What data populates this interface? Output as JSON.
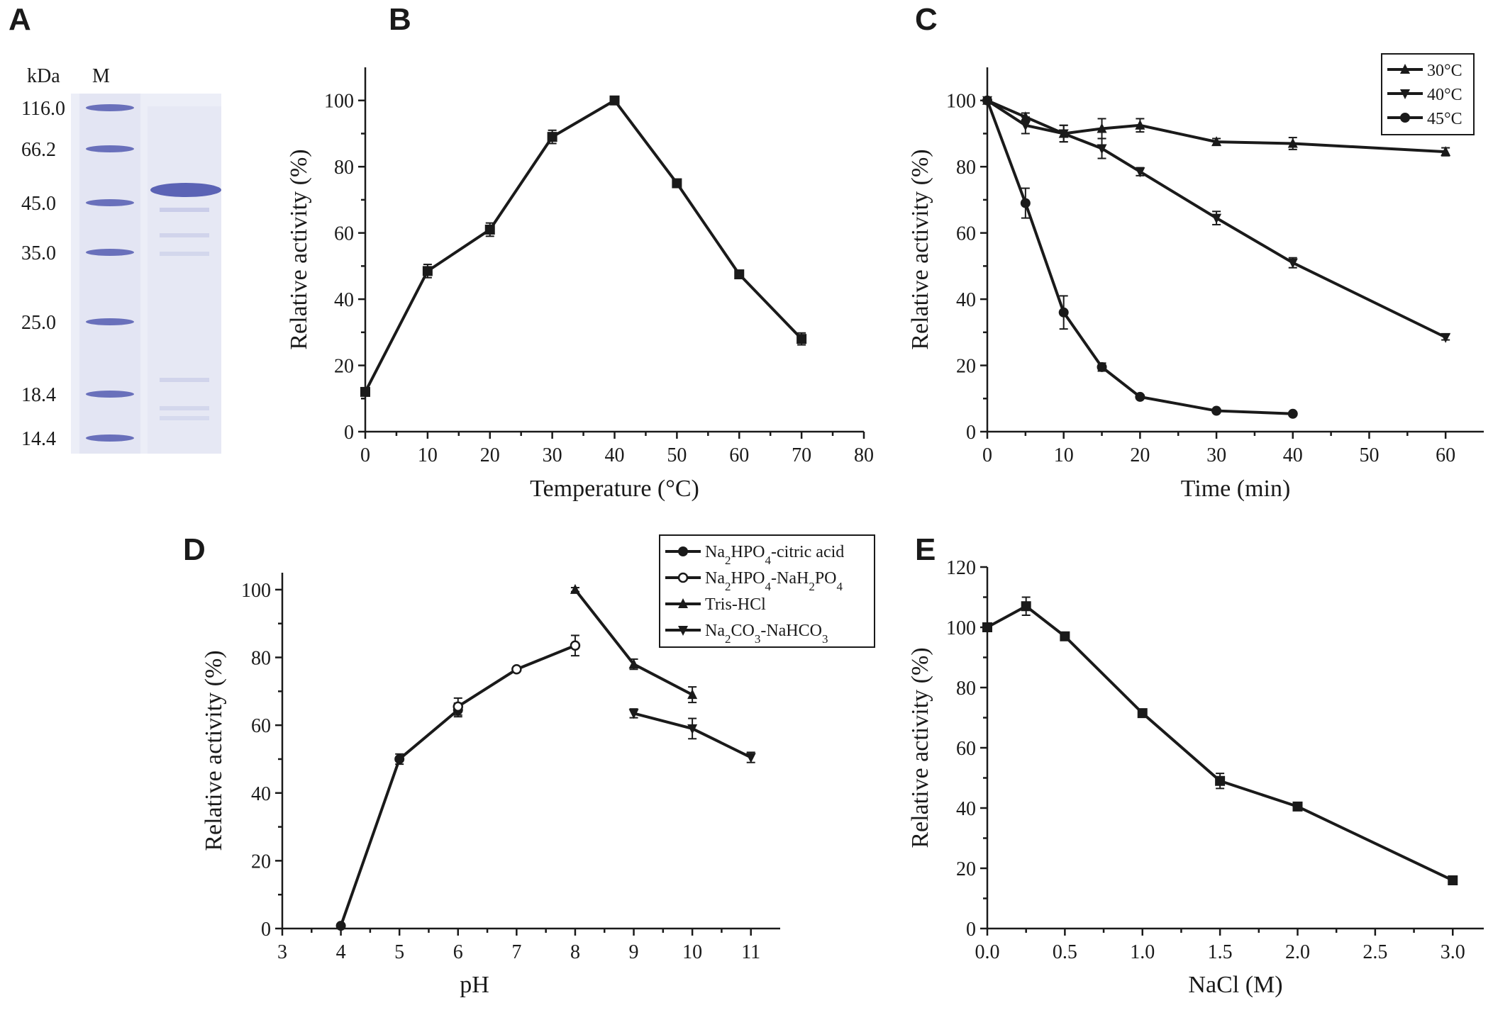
{
  "panels": {
    "A": "A",
    "B": "B",
    "C": "C",
    "D": "D",
    "E": "E"
  },
  "gel": {
    "unit": "kDa",
    "marker_lane": "M",
    "markers": [
      "116.0",
      "66.2",
      "45.0",
      "35.0",
      "25.0",
      "18.4",
      "14.4"
    ],
    "colors": {
      "band": "#5b63b5",
      "faint": "#a9aedb",
      "lane": "#e9eaf5"
    }
  },
  "chart_data": [
    {
      "panel": "B",
      "type": "line",
      "xlabel": "Temperature (°C)",
      "ylabel": "Relative activity (%)",
      "xlim": [
        0,
        80
      ],
      "ylim": [
        0,
        110
      ],
      "xticks": [
        "0",
        "10",
        "20",
        "30",
        "40",
        "50",
        "60",
        "70",
        "80"
      ],
      "yticks": [
        "0",
        "20",
        "40",
        "60",
        "80",
        "100"
      ],
      "series": [
        {
          "name": "activity",
          "marker": "square",
          "x": [
            0,
            10,
            20,
            30,
            40,
            50,
            60,
            70
          ],
          "values": [
            12,
            48.5,
            61,
            89,
            100,
            75,
            47.5,
            28
          ],
          "err": [
            0.8,
            2,
            2,
            2,
            0,
            0.6,
            0.6,
            1.8
          ]
        }
      ]
    },
    {
      "panel": "C",
      "type": "line",
      "xlabel": "Time (min)",
      "ylabel": "Relative activity (%)",
      "xlim": [
        0,
        65
      ],
      "ylim": [
        0,
        110
      ],
      "xticks": [
        "0",
        "10",
        "20",
        "30",
        "40",
        "50",
        "60"
      ],
      "yticks": [
        "0",
        "20",
        "40",
        "60",
        "80",
        "100"
      ],
      "legend": "top-right",
      "series": [
        {
          "name": "30°C",
          "marker": "triangle-up",
          "x": [
            0,
            5,
            10,
            15,
            20,
            30,
            40,
            60
          ],
          "values": [
            100,
            95,
            90,
            91.5,
            92.5,
            87.5,
            87,
            84.5
          ],
          "err": [
            0,
            1.2,
            2.5,
            3,
            2,
            1,
            1.8,
            1.2
          ]
        },
        {
          "name": "40°C",
          "marker": "triangle-down",
          "x": [
            0,
            5,
            10,
            15,
            20,
            30,
            40,
            60
          ],
          "values": [
            100,
            92.5,
            90,
            85.5,
            78.5,
            64.5,
            51,
            28.5
          ],
          "err": [
            0,
            2.5,
            2.5,
            3,
            1.2,
            2,
            1.5,
            0.8
          ]
        },
        {
          "name": "45°C",
          "marker": "circle",
          "x": [
            0,
            5,
            10,
            15,
            20,
            30,
            40
          ],
          "values": [
            100,
            69,
            36,
            19.5,
            10.5,
            6.3,
            5.4
          ],
          "err": [
            0,
            4.5,
            5,
            1.2,
            0.6,
            0.5,
            0.5
          ]
        }
      ]
    },
    {
      "panel": "D",
      "type": "line",
      "xlabel": "pH",
      "ylabel": "Relative activity (%)",
      "xlim": [
        3,
        11.5
      ],
      "ylim": [
        0,
        105
      ],
      "xticks": [
        "3",
        "4",
        "5",
        "6",
        "7",
        "8",
        "9",
        "10",
        "11"
      ],
      "yticks": [
        "0",
        "20",
        "40",
        "60",
        "80",
        "100"
      ],
      "legend": "top-right",
      "series": [
        {
          "name": "Na2HPO4-citric acid",
          "legend_main": "Na",
          "legend_sub1": "2",
          "legend_mid": "HPO",
          "legend_sub2": "4",
          "legend_tail": "-citric acid",
          "marker": "circle",
          "x": [
            4,
            5,
            6
          ],
          "values": [
            0.8,
            50,
            64.5
          ],
          "err": [
            0.5,
            1.5,
            2
          ]
        },
        {
          "name": "Na2HPO4-NaH2PO4",
          "legend_main": "Na",
          "legend_sub1": "2",
          "legend_mid": "HPO",
          "legend_sub2": "4",
          "legend_mid2": "-NaH",
          "legend_sub3": "2",
          "legend_mid3": "PO",
          "legend_sub4": "4",
          "marker": "circle-open",
          "x": [
            6,
            7,
            8
          ],
          "values": [
            65.5,
            76.5,
            83.5
          ],
          "err": [
            2.5,
            0.6,
            3
          ]
        },
        {
          "name": "Tris-HCl",
          "legend_main": "Tris-HCl",
          "marker": "triangle-up",
          "x": [
            8,
            9,
            10
          ],
          "values": [
            100,
            78,
            69
          ],
          "err": [
            0.6,
            1.5,
            2.3
          ]
        },
        {
          "name": "Na2CO3-NaHCO3",
          "legend_main": "Na",
          "legend_sub1": "2",
          "legend_mid": "CO",
          "legend_sub2": "3",
          "legend_tail": "-NaHCO",
          "legend_sub3": "3",
          "marker": "triangle-down",
          "x": [
            9,
            10,
            11
          ],
          "values": [
            63.5,
            59,
            50.5
          ],
          "err": [
            1.3,
            3,
            1.5
          ]
        }
      ]
    },
    {
      "panel": "E",
      "type": "line",
      "xlabel": "NaCl (M)",
      "ylabel": "Relative activity (%)",
      "xlim": [
        0,
        3.2
      ],
      "ylim": [
        0,
        120
      ],
      "xticks": [
        "0.0",
        "0.5",
        "1.0",
        "1.5",
        "2.0",
        "2.5",
        "3.0"
      ],
      "yticks": [
        "0",
        "20",
        "40",
        "60",
        "80",
        "100",
        "120"
      ],
      "series": [
        {
          "name": "activity",
          "marker": "square",
          "x": [
            0,
            0.25,
            0.5,
            1.0,
            1.5,
            2.0,
            3.0
          ],
          "values": [
            100,
            107,
            97,
            71.5,
            49,
            40.5,
            16
          ],
          "err": [
            0,
            3,
            1,
            0.6,
            2.5,
            0.8,
            0.5
          ]
        }
      ]
    }
  ]
}
